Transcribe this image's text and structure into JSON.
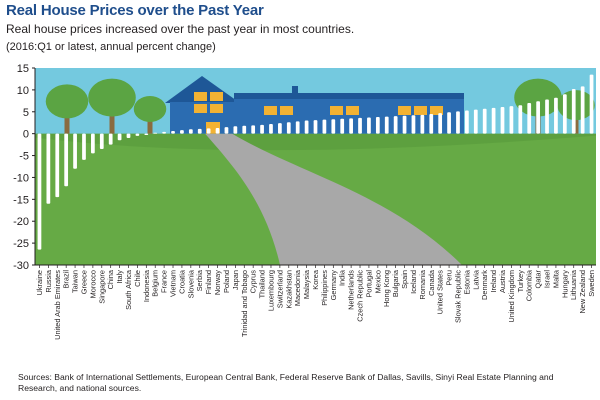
{
  "header": {
    "title": "Real House Prices over the Past Year",
    "subtitle": "Real house prices increased over the past year in most countries.",
    "note": "(2016:Q1 or latest, annual percent change)"
  },
  "footer": {
    "sources": "Sources: Bank of International Settlements, European Central Bank, Federal Reserve Bank of Dallas, Savills, Sinyi Real Estate Planning and Research, and national sources."
  },
  "colors": {
    "sky": "#74c9df",
    "grass": "#66aa45",
    "grass_dark": "#4e8f35",
    "bar": "#ffffff",
    "house": "#2b6cb1",
    "roof": "#1e5797",
    "window": "#f2b233",
    "path": "#a8a8a8",
    "tree": "#5ba443",
    "trunk": "#8a6b3f",
    "title": "#1f4e8c"
  },
  "chart_data": {
    "type": "bar",
    "ylim": [
      -30,
      15
    ],
    "yticks": [
      15,
      10,
      5,
      0,
      -5,
      -10,
      -15,
      -20,
      -25,
      -30
    ],
    "grid": false,
    "categories": [
      "Ukraine",
      "Russia",
      "United Arab Emirates",
      "Brazil",
      "Taiwan",
      "Greece",
      "Morocco",
      "Singapore",
      "China",
      "Italy",
      "South Africa",
      "Chile",
      "Indonesia",
      "Belgium",
      "France",
      "Vietnam",
      "Croatia",
      "Slovenia",
      "Serbia",
      "Finland",
      "Norway",
      "Poland",
      "Japan",
      "Trinidad and Tobago",
      "Cyprus",
      "Thailand",
      "Luxembourg",
      "Switzerland",
      "Kazakhstan",
      "Macedonia",
      "Malaysia",
      "Korea",
      "Philippines",
      "Germany",
      "India",
      "Netherlands",
      "Czech Republic",
      "Portugal",
      "Mexico",
      "Hong Kong",
      "Bulgaria",
      "Spain",
      "Iceland",
      "Romania",
      "Canada",
      "United States",
      "Peru",
      "Slovak Republic",
      "Estonia",
      "Latvia",
      "Denmark",
      "Ireland",
      "Austria",
      "United Kingdom",
      "Turkey",
      "Colombia",
      "Qatar",
      "Israel",
      "Malta",
      "Hungary",
      "Lithuania",
      "New Zealand",
      "Sweden"
    ],
    "values": [
      -26.5,
      -16,
      -14.5,
      -12,
      -8,
      -6,
      -4.5,
      -3.5,
      -2.5,
      -1.5,
      -1,
      -0.5,
      -0.3,
      0.2,
      0.4,
      0.6,
      0.8,
      1,
      1.1,
      1.2,
      1.3,
      1.5,
      1.7,
      1.8,
      1.9,
      2,
      2.2,
      2.4,
      2.6,
      2.8,
      3,
      3.1,
      3.2,
      3.3,
      3.4,
      3.5,
      3.6,
      3.7,
      3.8,
      3.9,
      4,
      4.1,
      4.2,
      4.3,
      4.5,
      4.7,
      4.9,
      5.1,
      5.3,
      5.5,
      5.7,
      5.9,
      6.1,
      6.3,
      6.5,
      7,
      7.4,
      7.8,
      8.2,
      9,
      10.2,
      10.8,
      13.5
    ]
  }
}
